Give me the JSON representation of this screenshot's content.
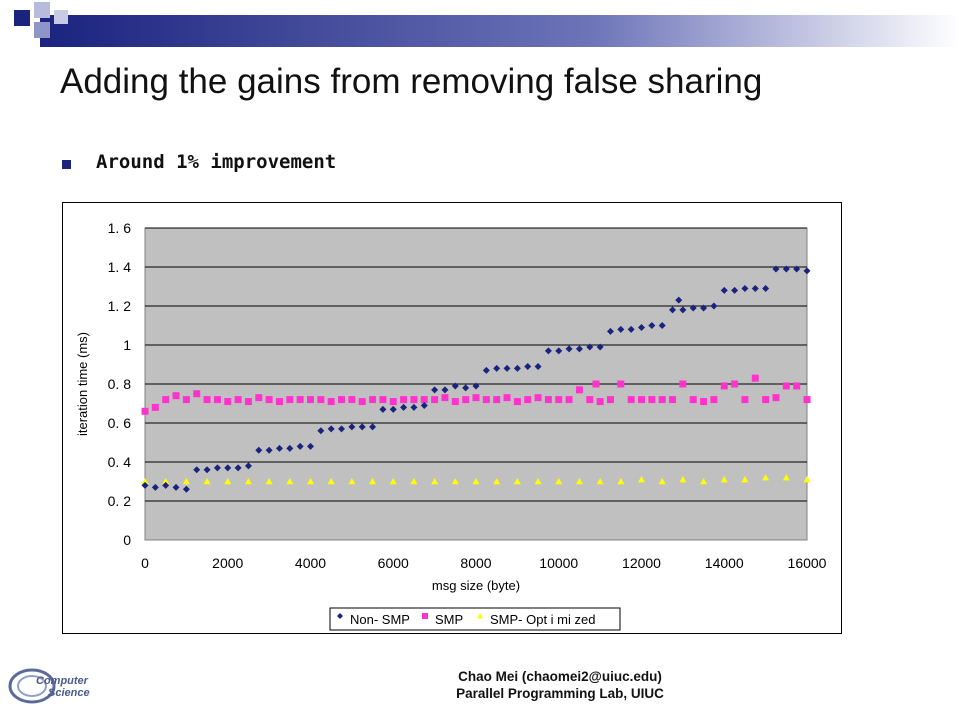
{
  "slide": {
    "title": "Adding the gains from removing false sharing",
    "bullet": "Around 1% improvement",
    "footer_line1": "Chao Mei (chaomei2@uiuc.edu)",
    "footer_line2": "Parallel Programming Lab, UIUC",
    "logo_text_line1": "Computer",
    "logo_text_line2": "Science"
  },
  "colors": {
    "header_dark": "#1a237e",
    "plot_area": "#c0c0c0",
    "non_smp": "#1a237e",
    "smp": "#ff33cc",
    "smp_optimized": "#ffff00"
  },
  "chart_data": {
    "type": "scatter",
    "title": "",
    "xlabel": "msg size (byte)",
    "ylabel": "iteration time (ms)",
    "xlim": [
      0,
      16000
    ],
    "ylim": [
      0,
      1.6
    ],
    "x_ticks": [
      0,
      2000,
      4000,
      6000,
      8000,
      10000,
      12000,
      14000,
      16000
    ],
    "y_ticks": [
      0,
      0.2,
      0.4,
      0.6,
      0.8,
      1,
      1.2,
      1.4,
      1.6
    ],
    "x_tick_labels": [
      "0",
      "2000",
      "4000",
      "6000",
      "8000",
      "10000",
      "12000",
      "14000",
      "16000"
    ],
    "y_tick_labels": [
      "0",
      "0. 2",
      "0. 4",
      "0. 6",
      "0. 8",
      "1",
      "1. 2",
      "1. 4",
      "1. 6"
    ],
    "grid": "horizontal",
    "legend_position": "bottom",
    "series": [
      {
        "name": "Non- SMP",
        "marker": "diamond",
        "points": [
          [
            0,
            0.28
          ],
          [
            250,
            0.27
          ],
          [
            500,
            0.28
          ],
          [
            750,
            0.27
          ],
          [
            1000,
            0.26
          ],
          [
            1250,
            0.36
          ],
          [
            1500,
            0.36
          ],
          [
            1750,
            0.37
          ],
          [
            2000,
            0.37
          ],
          [
            2250,
            0.37
          ],
          [
            2500,
            0.38
          ],
          [
            2750,
            0.46
          ],
          [
            3000,
            0.46
          ],
          [
            3250,
            0.47
          ],
          [
            3500,
            0.47
          ],
          [
            3750,
            0.48
          ],
          [
            4000,
            0.48
          ],
          [
            4250,
            0.56
          ],
          [
            4500,
            0.57
          ],
          [
            4750,
            0.57
          ],
          [
            5000,
            0.58
          ],
          [
            5250,
            0.58
          ],
          [
            5500,
            0.58
          ],
          [
            5750,
            0.67
          ],
          [
            6000,
            0.67
          ],
          [
            6250,
            0.68
          ],
          [
            6500,
            0.68
          ],
          [
            6750,
            0.69
          ],
          [
            7000,
            0.77
          ],
          [
            7250,
            0.77
          ],
          [
            7500,
            0.79
          ],
          [
            7750,
            0.78
          ],
          [
            8000,
            0.79
          ],
          [
            8250,
            0.87
          ],
          [
            8500,
            0.88
          ],
          [
            8750,
            0.88
          ],
          [
            9000,
            0.88
          ],
          [
            9250,
            0.89
          ],
          [
            9500,
            0.89
          ],
          [
            9750,
            0.97
          ],
          [
            10000,
            0.97
          ],
          [
            10250,
            0.98
          ],
          [
            10500,
            0.98
          ],
          [
            10750,
            0.99
          ],
          [
            11000,
            0.99
          ],
          [
            11250,
            1.07
          ],
          [
            11500,
            1.08
          ],
          [
            11750,
            1.08
          ],
          [
            12000,
            1.09
          ],
          [
            12250,
            1.1
          ],
          [
            12500,
            1.1
          ],
          [
            12750,
            1.18
          ],
          [
            12900,
            1.23
          ],
          [
            13000,
            1.18
          ],
          [
            13250,
            1.19
          ],
          [
            13500,
            1.19
          ],
          [
            13750,
            1.2
          ],
          [
            14000,
            1.28
          ],
          [
            14250,
            1.28
          ],
          [
            14500,
            1.29
          ],
          [
            14750,
            1.29
          ],
          [
            15000,
            1.29
          ],
          [
            15250,
            1.39
          ],
          [
            15500,
            1.39
          ],
          [
            15750,
            1.39
          ],
          [
            16000,
            1.38
          ]
        ]
      },
      {
        "name": "SMP",
        "marker": "square",
        "points": [
          [
            0,
            0.66
          ],
          [
            250,
            0.68
          ],
          [
            500,
            0.72
          ],
          [
            750,
            0.74
          ],
          [
            1000,
            0.72
          ],
          [
            1250,
            0.75
          ],
          [
            1500,
            0.72
          ],
          [
            1750,
            0.72
          ],
          [
            2000,
            0.71
          ],
          [
            2250,
            0.72
          ],
          [
            2500,
            0.71
          ],
          [
            2750,
            0.73
          ],
          [
            3000,
            0.72
          ],
          [
            3250,
            0.71
          ],
          [
            3500,
            0.72
          ],
          [
            3750,
            0.72
          ],
          [
            4000,
            0.72
          ],
          [
            4250,
            0.72
          ],
          [
            4500,
            0.71
          ],
          [
            4750,
            0.72
          ],
          [
            5000,
            0.72
          ],
          [
            5250,
            0.71
          ],
          [
            5500,
            0.72
          ],
          [
            5750,
            0.72
          ],
          [
            6000,
            0.71
          ],
          [
            6250,
            0.72
          ],
          [
            6500,
            0.72
          ],
          [
            6750,
            0.72
          ],
          [
            7000,
            0.72
          ],
          [
            7250,
            0.73
          ],
          [
            7500,
            0.71
          ],
          [
            7750,
            0.72
          ],
          [
            8000,
            0.73
          ],
          [
            8250,
            0.72
          ],
          [
            8500,
            0.72
          ],
          [
            8750,
            0.73
          ],
          [
            9000,
            0.71
          ],
          [
            9250,
            0.72
          ],
          [
            9500,
            0.73
          ],
          [
            9750,
            0.72
          ],
          [
            10000,
            0.72
          ],
          [
            10250,
            0.72
          ],
          [
            10500,
            0.77
          ],
          [
            10750,
            0.72
          ],
          [
            10900,
            0.8
          ],
          [
            11000,
            0.71
          ],
          [
            11250,
            0.72
          ],
          [
            11500,
            0.8
          ],
          [
            11750,
            0.72
          ],
          [
            12000,
            0.72
          ],
          [
            12250,
            0.72
          ],
          [
            12500,
            0.72
          ],
          [
            12750,
            0.72
          ],
          [
            13000,
            0.8
          ],
          [
            13250,
            0.72
          ],
          [
            13500,
            0.71
          ],
          [
            13750,
            0.72
          ],
          [
            14000,
            0.79
          ],
          [
            14250,
            0.8
          ],
          [
            14500,
            0.72
          ],
          [
            14750,
            0.83
          ],
          [
            15000,
            0.72
          ],
          [
            15250,
            0.73
          ],
          [
            15500,
            0.79
          ],
          [
            15750,
            0.79
          ],
          [
            16000,
            0.72
          ]
        ]
      },
      {
        "name": "SMP- Opt i mi zed",
        "marker": "triangle",
        "points": [
          [
            0,
            0.3
          ],
          [
            500,
            0.3
          ],
          [
            1000,
            0.3
          ],
          [
            1500,
            0.3
          ],
          [
            2000,
            0.3
          ],
          [
            2500,
            0.3
          ],
          [
            3000,
            0.3
          ],
          [
            3500,
            0.3
          ],
          [
            4000,
            0.3
          ],
          [
            4500,
            0.3
          ],
          [
            5000,
            0.3
          ],
          [
            5500,
            0.3
          ],
          [
            6000,
            0.3
          ],
          [
            6500,
            0.3
          ],
          [
            7000,
            0.3
          ],
          [
            7500,
            0.3
          ],
          [
            8000,
            0.3
          ],
          [
            8500,
            0.3
          ],
          [
            9000,
            0.3
          ],
          [
            9500,
            0.3
          ],
          [
            10000,
            0.3
          ],
          [
            10500,
            0.3
          ],
          [
            11000,
            0.3
          ],
          [
            11500,
            0.3
          ],
          [
            12000,
            0.31
          ],
          [
            12500,
            0.3
          ],
          [
            13000,
            0.31
          ],
          [
            13500,
            0.3
          ],
          [
            14000,
            0.31
          ],
          [
            14500,
            0.31
          ],
          [
            15000,
            0.32
          ],
          [
            15500,
            0.32
          ],
          [
            16000,
            0.31
          ]
        ]
      }
    ]
  }
}
